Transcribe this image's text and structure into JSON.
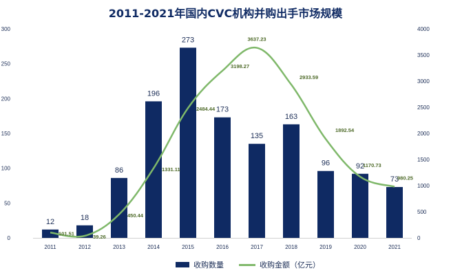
{
  "chart_data": {
    "type": "bar+line",
    "title": "2011-2021年国内CVC机构并购出手市场规模",
    "categories": [
      "2011",
      "2012",
      "2013",
      "2014",
      "2015",
      "2016",
      "2017",
      "2018",
      "2019",
      "2020",
      "2021"
    ],
    "series": [
      {
        "name": "收购数量",
        "type": "bar",
        "axis": "left",
        "color": "#0f2a63",
        "values": [
          12,
          18,
          86,
          196,
          273,
          173,
          135,
          163,
          96,
          92,
          73
        ],
        "labels": [
          "12",
          "18",
          "86",
          "196",
          "273",
          "173",
          "135",
          "163",
          "96",
          "92",
          "73"
        ]
      },
      {
        "name": "收购金额（亿元）",
        "type": "line",
        "axis": "right",
        "color": "#7fb86a",
        "values": [
          101.51,
          39.26,
          450.44,
          1331.11,
          2484.44,
          3198.27,
          3637.23,
          2933.59,
          1892.54,
          1170.73,
          980.25
        ],
        "labels": [
          "101.51",
          "39.26",
          "450.44",
          "1331.11",
          "2484.44",
          "3198.27",
          "3637.23",
          "2933.59",
          "1892.54",
          "1170.73",
          "980.25"
        ]
      }
    ],
    "y_left": {
      "min": 0,
      "max": 300,
      "ticks": [
        "0",
        "50",
        "100",
        "150",
        "200",
        "250",
        "300"
      ]
    },
    "y_right": {
      "min": 0,
      "max": 4000,
      "ticks": [
        "0",
        "500",
        "1000",
        "1500",
        "2000",
        "2500",
        "3000",
        "3500",
        "4000"
      ]
    },
    "legend_position": "bottom"
  }
}
